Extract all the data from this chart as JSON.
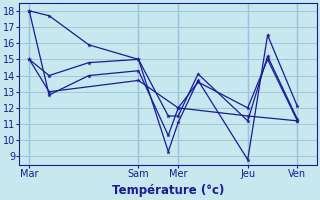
{
  "xlabel": "Température (°c)",
  "background_color": "#c8e8f0",
  "grid_color": "#a0c8d8",
  "line_color": "#1a1a99",
  "ylim": [
    8.5,
    18.5
  ],
  "yticks": [
    9,
    10,
    11,
    12,
    13,
    14,
    15,
    16,
    17,
    18
  ],
  "xlim": [
    -0.5,
    14.5
  ],
  "day_labels": [
    "Mar",
    "Sam",
    "Mer",
    "Jeu",
    "Ven"
  ],
  "day_tick_x": [
    0,
    5.5,
    7.5,
    11.0,
    13.5
  ],
  "vline_x": [
    0,
    5.5,
    7.5,
    11.0,
    13.5
  ],
  "series": [
    {
      "x": [
        0.0,
        1.0,
        3.0,
        5.5,
        7.0,
        7.5,
        8.5,
        11.0,
        12.0,
        13.5
      ],
      "y": [
        18.0,
        17.7,
        15.9,
        15.0,
        9.3,
        11.1,
        13.7,
        8.8,
        16.5,
        12.1
      ]
    },
    {
      "x": [
        0.0,
        1.0,
        3.0,
        5.5,
        7.0,
        7.5,
        8.5,
        11.0,
        12.0,
        13.5
      ],
      "y": [
        15.0,
        14.0,
        14.8,
        15.0,
        11.5,
        11.5,
        14.1,
        11.2,
        15.2,
        11.3
      ]
    },
    {
      "x": [
        0.0,
        1.0,
        5.5,
        7.5,
        11.0,
        13.5
      ],
      "y": [
        15.0,
        13.0,
        13.7,
        12.0,
        11.5,
        11.2
      ]
    },
    {
      "x": [
        0.0,
        1.0,
        3.0,
        5.5,
        7.0,
        7.5,
        8.5,
        11.0,
        12.0,
        13.5
      ],
      "y": [
        18.0,
        12.8,
        14.0,
        14.3,
        10.3,
        12.0,
        13.6,
        12.0,
        15.0,
        11.2
      ]
    }
  ]
}
